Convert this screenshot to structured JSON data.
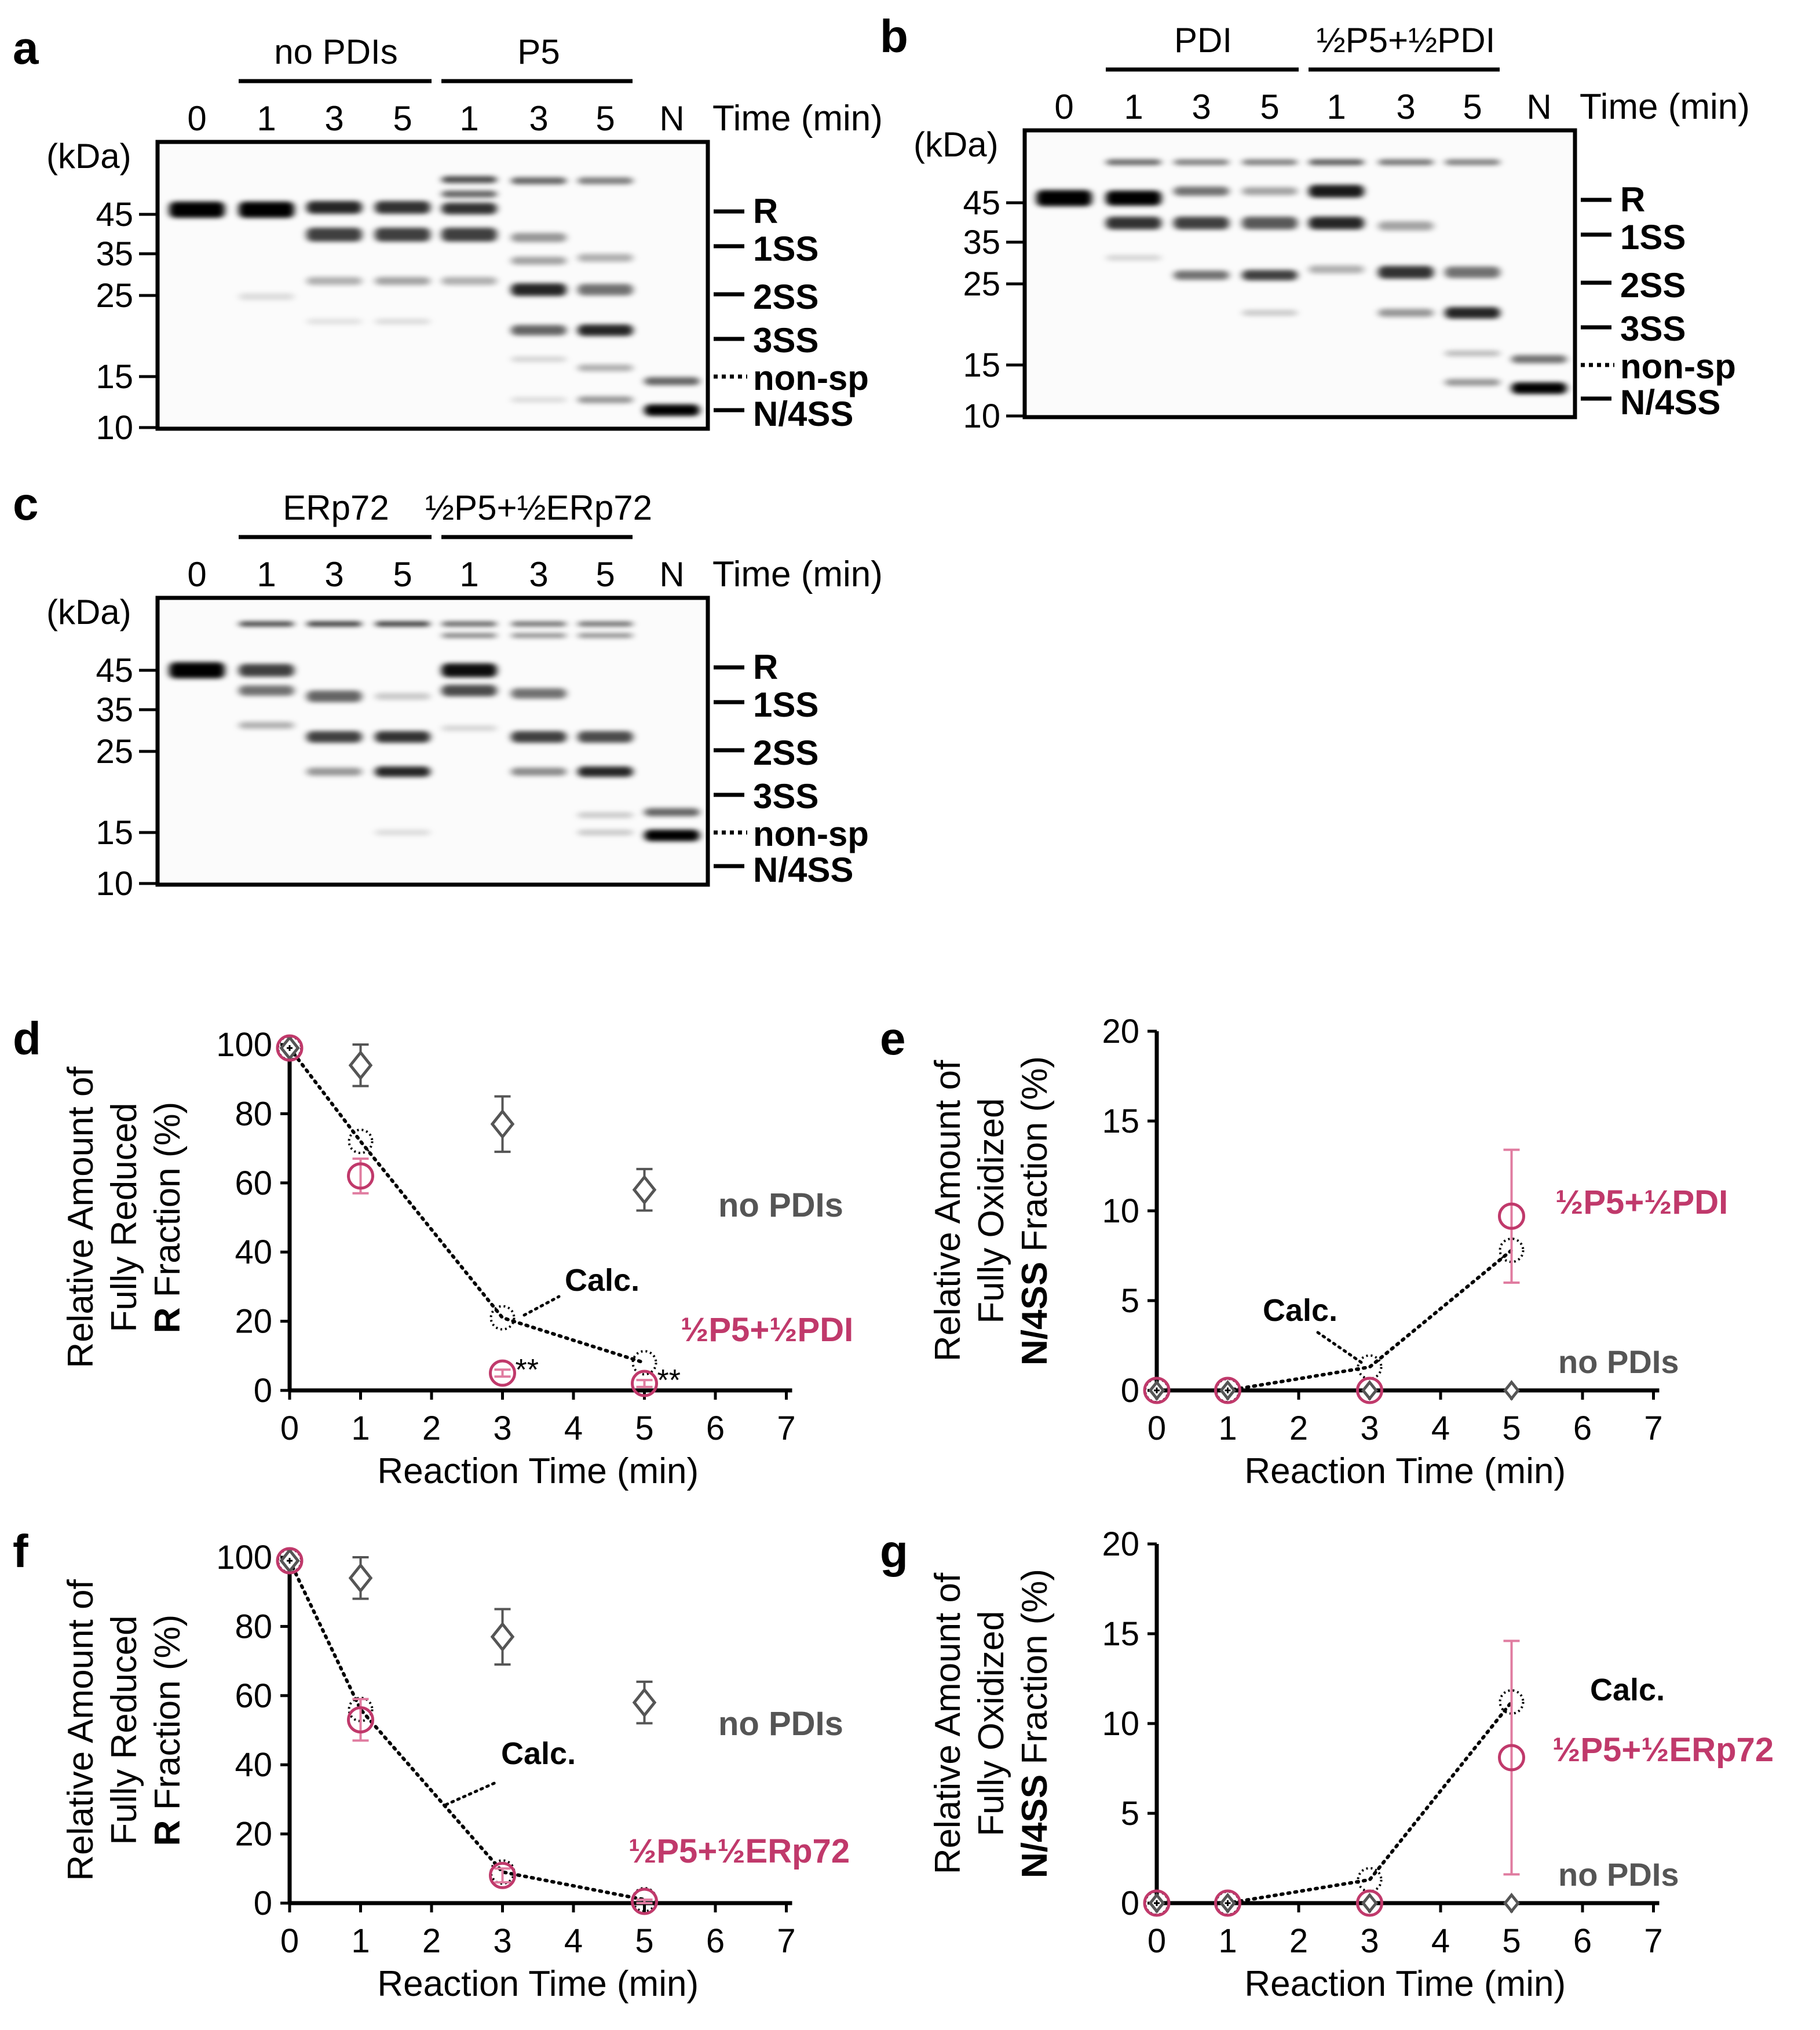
{
  "figure": {
    "panel_letters": {
      "a": "a",
      "b": "b",
      "c": "c",
      "d": "d",
      "e": "e",
      "f": "f",
      "g": "g"
    },
    "common": {
      "kda": "(kDa)",
      "time_label": "Time (min)",
      "lane_N": "N",
      "mw_ticks": [
        "45",
        "35",
        "25",
        "15",
        "10"
      ],
      "band_labels": [
        "R",
        "1SS",
        "2SS",
        "3SS",
        "non-sp",
        "N/4SS"
      ]
    }
  },
  "gels": [
    {
      "panel": "a",
      "groups": [
        "no PDIs",
        "P5"
      ],
      "lanes": [
        "0",
        "1",
        "3",
        "5",
        "1",
        "3",
        "5",
        "N"
      ]
    },
    {
      "panel": "b",
      "groups": [
        "PDI",
        "½P5+½PDI"
      ],
      "lanes": [
        "0",
        "1",
        "3",
        "5",
        "1",
        "3",
        "5",
        "N"
      ]
    },
    {
      "panel": "c",
      "groups": [
        "ERp72",
        "½P5+½ERp72"
      ],
      "lanes": [
        "0",
        "1",
        "3",
        "5",
        "1",
        "3",
        "5",
        "N"
      ]
    }
  ],
  "colors": {
    "pink": "#c0396b",
    "pink_light": "#e07ca0",
    "gray": "#555555",
    "black": "#000000"
  },
  "chart_data": [
    {
      "panel": "d",
      "type": "scatter",
      "title": "",
      "xlabel": "Reaction Time (min)",
      "ylabel_lines": [
        "Relative Amount of",
        "Fully Reduced",
        "R Fraction (%)"
      ],
      "xlim": [
        0,
        7
      ],
      "ylim": [
        0,
        100
      ],
      "xticks": [
        "0",
        "1",
        "2",
        "3",
        "4",
        "5",
        "6",
        "7"
      ],
      "yticks": [
        "0",
        "20",
        "40",
        "60",
        "80",
        "100"
      ],
      "series": [
        {
          "name": "no PDIs",
          "marker": "diamond",
          "x": [
            0,
            1,
            3,
            5
          ],
          "y": [
            99,
            94,
            77,
            58
          ],
          "err": [
            0,
            6,
            8,
            6
          ]
        },
        {
          "name": "½P5+½PDI",
          "marker": "circle",
          "x": [
            0,
            1,
            3,
            5
          ],
          "y": [
            99,
            62,
            5,
            2
          ],
          "err": [
            0,
            5,
            1,
            1
          ]
        },
        {
          "name": "Calc.",
          "marker": "dotted-circle",
          "x": [
            0,
            1,
            3,
            5
          ],
          "y": [
            99,
            72,
            21,
            8
          ]
        }
      ],
      "annotations": [
        "**",
        "**"
      ]
    },
    {
      "panel": "e",
      "type": "scatter",
      "title": "",
      "xlabel": "Reaction Time (min)",
      "ylabel_lines": [
        "Relative Amount of",
        "Fully Oxidized",
        "N/4SS Fraction (%)"
      ],
      "xlim": [
        0,
        7
      ],
      "ylim": [
        0,
        20
      ],
      "xticks": [
        "0",
        "1",
        "2",
        "3",
        "4",
        "5",
        "6",
        "7"
      ],
      "yticks": [
        "0",
        "5",
        "10",
        "15",
        "20"
      ],
      "series": [
        {
          "name": "no PDIs",
          "marker": "diamond",
          "x": [
            0,
            1,
            3,
            5
          ],
          "y": [
            0,
            0,
            0,
            0
          ]
        },
        {
          "name": "½P5+½PDI",
          "marker": "circle",
          "x": [
            0,
            1,
            3,
            5
          ],
          "y": [
            0,
            0,
            0,
            9.7
          ],
          "err": [
            0,
            0,
            0,
            3.7
          ]
        },
        {
          "name": "Calc.",
          "marker": "dotted-circle",
          "x": [
            0,
            1,
            3,
            5
          ],
          "y": [
            0,
            0,
            1.3,
            7.8
          ]
        }
      ]
    },
    {
      "panel": "f",
      "type": "scatter",
      "title": "",
      "xlabel": "Reaction Time (min)",
      "ylabel_lines": [
        "Relative Amount of",
        "Fully Reduced",
        "R Fraction (%)"
      ],
      "xlim": [
        0,
        7
      ],
      "ylim": [
        0,
        100
      ],
      "xticks": [
        "0",
        "1",
        "2",
        "3",
        "4",
        "5",
        "6",
        "7"
      ],
      "yticks": [
        "0",
        "20",
        "40",
        "60",
        "80",
        "100"
      ],
      "series": [
        {
          "name": "no PDIs",
          "marker": "diamond",
          "x": [
            0,
            1,
            3,
            5
          ],
          "y": [
            99,
            94,
            77,
            58
          ],
          "err": [
            0,
            6,
            8,
            6
          ]
        },
        {
          "name": "½P5+½ERp72",
          "marker": "circle",
          "x": [
            0,
            1,
            3,
            5
          ],
          "y": [
            99,
            53,
            8,
            0.5
          ],
          "err": [
            0,
            6,
            2,
            0.5
          ]
        },
        {
          "name": "Calc.",
          "marker": "dotted-circle",
          "x": [
            0,
            1,
            3,
            5
          ],
          "y": [
            99,
            56,
            9,
            1
          ]
        }
      ]
    },
    {
      "panel": "g",
      "type": "scatter",
      "title": "",
      "xlabel": "Reaction Time (min)",
      "ylabel_lines": [
        "Relative Amount of",
        "Fully Oxidized",
        "N/4SS Fraction (%)"
      ],
      "xlim": [
        0,
        7
      ],
      "ylim": [
        0,
        20
      ],
      "xticks": [
        "0",
        "1",
        "2",
        "3",
        "4",
        "5",
        "6",
        "7"
      ],
      "yticks": [
        "0",
        "5",
        "10",
        "15",
        "20"
      ],
      "series": [
        {
          "name": "no PDIs",
          "marker": "diamond",
          "x": [
            0,
            1,
            3,
            5
          ],
          "y": [
            0,
            0,
            0,
            0
          ]
        },
        {
          "name": "½P5+½ERp72",
          "marker": "circle",
          "x": [
            0,
            1,
            3,
            5
          ],
          "y": [
            0,
            0,
            0,
            8.1
          ],
          "err": [
            0,
            0,
            0,
            6.5
          ]
        },
        {
          "name": "Calc.",
          "marker": "dotted-circle",
          "x": [
            0,
            1,
            3,
            5
          ],
          "y": [
            0,
            0,
            1.3,
            11.2
          ]
        }
      ]
    }
  ]
}
